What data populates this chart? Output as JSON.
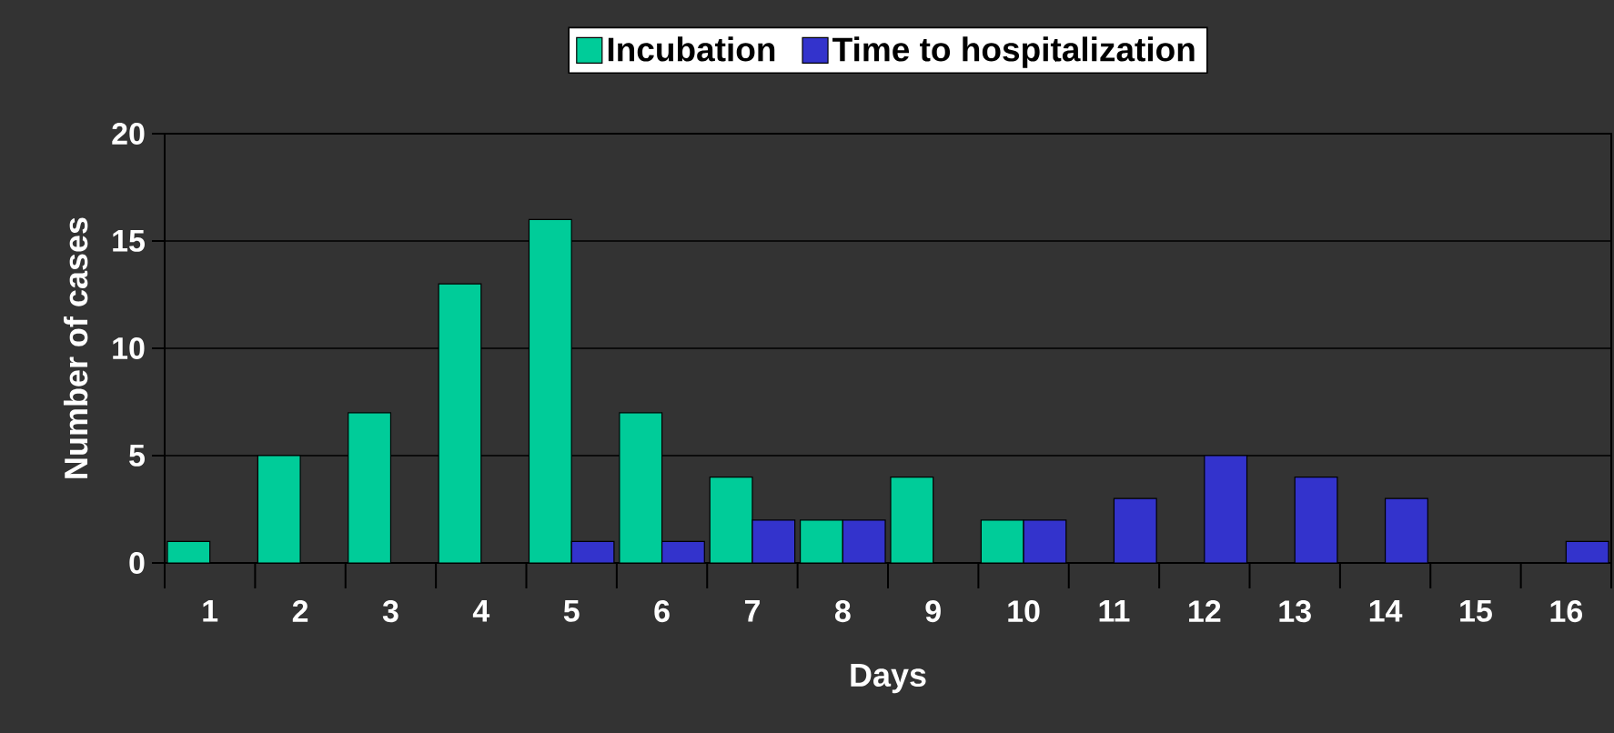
{
  "chart_data": {
    "type": "bar",
    "categories": [
      "1",
      "2",
      "3",
      "4",
      "5",
      "6",
      "7",
      "8",
      "9",
      "10",
      "11",
      "12",
      "13",
      "14",
      "15",
      "16"
    ],
    "series": [
      {
        "name": "Incubation",
        "color": "#00cc99",
        "values": [
          1,
          5,
          7,
          13,
          16,
          7,
          4,
          2,
          4,
          2,
          null,
          null,
          null,
          null,
          null,
          null
        ]
      },
      {
        "name": "Time to hospitalization",
        "color": "#3333cc",
        "values": [
          null,
          null,
          null,
          null,
          1,
          1,
          2,
          2,
          null,
          2,
          3,
          5,
          4,
          3,
          null,
          1
        ]
      }
    ],
    "xlabel": "Days",
    "ylabel": "Number of cases",
    "ylim": [
      0,
      20
    ],
    "yticks": [
      0,
      5,
      10,
      15,
      20
    ],
    "grid": "y",
    "legend": "top"
  }
}
